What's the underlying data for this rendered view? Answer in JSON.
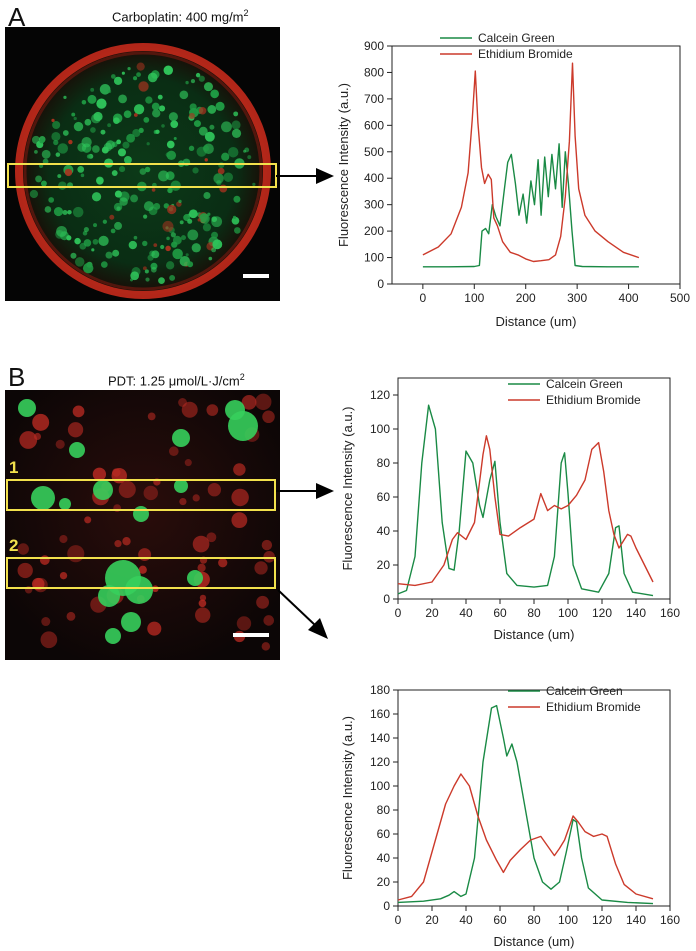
{
  "panels": {
    "a": {
      "letter": "A",
      "caption_text": "Carboplatin: 400 mg/m",
      "caption_sup": "2"
    },
    "b": {
      "letter": "B",
      "caption_text": "PDT: 1.25 μmol/L·J/cm",
      "caption_sup": "2",
      "box1_label": "1",
      "box2_label": "2"
    }
  },
  "colors": {
    "green": "#1a8a45",
    "red": "#cc3a2b",
    "highlight_box": "#f2e14c"
  },
  "chart_data": [
    {
      "id": "A",
      "type": "line",
      "title": "",
      "xlabel": "Distance (um)",
      "ylabel": "Fluorescence Intensity (a.u.)",
      "xlim": [
        -60,
        500
      ],
      "ylim": [
        0,
        900
      ],
      "xticks": [
        0,
        100,
        200,
        300,
        400,
        500
      ],
      "yticks": [
        0,
        100,
        200,
        300,
        400,
        500,
        600,
        700,
        800,
        900
      ],
      "legend_position": "top-center",
      "series": [
        {
          "name": "Calcein Green",
          "color": "#1a8a45",
          "points": [
            [
              0,
              65
            ],
            [
              50,
              65
            ],
            [
              100,
              66
            ],
            [
              110,
              70
            ],
            [
              115,
              200
            ],
            [
              122,
              210
            ],
            [
              128,
              190
            ],
            [
              135,
              300
            ],
            [
              142,
              255
            ],
            [
              150,
              220
            ],
            [
              158,
              350
            ],
            [
              165,
              460
            ],
            [
              172,
              490
            ],
            [
              180,
              380
            ],
            [
              187,
              260
            ],
            [
              195,
              340
            ],
            [
              202,
              230
            ],
            [
              210,
              390
            ],
            [
              217,
              300
            ],
            [
              224,
              470
            ],
            [
              230,
              260
            ],
            [
              237,
              480
            ],
            [
              244,
              330
            ],
            [
              251,
              490
            ],
            [
              258,
              360
            ],
            [
              265,
              530
            ],
            [
              271,
              290
            ],
            [
              277,
              500
            ],
            [
              283,
              380
            ],
            [
              290,
              200
            ],
            [
              296,
              70
            ],
            [
              310,
              66
            ],
            [
              360,
              65
            ],
            [
              420,
              65
            ]
          ]
        },
        {
          "name": "Ethidium Bromide",
          "color": "#cc3a2b",
          "points": [
            [
              0,
              110
            ],
            [
              30,
              140
            ],
            [
              55,
              190
            ],
            [
              75,
              290
            ],
            [
              88,
              420
            ],
            [
              96,
              620
            ],
            [
              102,
              805
            ],
            [
              107,
              610
            ],
            [
              114,
              440
            ],
            [
              120,
              380
            ],
            [
              127,
              415
            ],
            [
              133,
              395
            ],
            [
              138,
              250
            ],
            [
              145,
              220
            ],
            [
              155,
              160
            ],
            [
              170,
              120
            ],
            [
              185,
              110
            ],
            [
              200,
              95
            ],
            [
              215,
              85
            ],
            [
              230,
              88
            ],
            [
              245,
              92
            ],
            [
              258,
              110
            ],
            [
              268,
              180
            ],
            [
              277,
              330
            ],
            [
              285,
              540
            ],
            [
              291,
              835
            ],
            [
              296,
              560
            ],
            [
              303,
              360
            ],
            [
              315,
              260
            ],
            [
              335,
              200
            ],
            [
              360,
              160
            ],
            [
              390,
              120
            ],
            [
              420,
              100
            ]
          ]
        }
      ]
    },
    {
      "id": "B1",
      "type": "line",
      "title": "",
      "xlabel": "Distance (um)",
      "ylabel": "Fluorescence Intensity (a.u.)",
      "xlim": [
        0,
        160
      ],
      "ylim": [
        0,
        130
      ],
      "xticks": [
        0,
        20,
        40,
        60,
        80,
        100,
        120,
        140,
        160
      ],
      "yticks": [
        0,
        20,
        40,
        60,
        80,
        100,
        120
      ],
      "legend_position": "top-right",
      "series": [
        {
          "name": "Calcein Green",
          "color": "#1a8a45",
          "points": [
            [
              0,
              3
            ],
            [
              5,
              5
            ],
            [
              10,
              25
            ],
            [
              14,
              80
            ],
            [
              18,
              114
            ],
            [
              22,
              100
            ],
            [
              26,
              45
            ],
            [
              30,
              18
            ],
            [
              33,
              17
            ],
            [
              36,
              40
            ],
            [
              40,
              87
            ],
            [
              44,
              80
            ],
            [
              48,
              55
            ],
            [
              50,
              48
            ],
            [
              54,
              70
            ],
            [
              57,
              81
            ],
            [
              60,
              45
            ],
            [
              64,
              15
            ],
            [
              70,
              8
            ],
            [
              80,
              7
            ],
            [
              88,
              8
            ],
            [
              92,
              25
            ],
            [
              96,
              80
            ],
            [
              98,
              86
            ],
            [
              100,
              62
            ],
            [
              103,
              20
            ],
            [
              108,
              6
            ],
            [
              118,
              4
            ],
            [
              124,
              15
            ],
            [
              128,
              42
            ],
            [
              130,
              43
            ],
            [
              133,
              15
            ],
            [
              138,
              4
            ],
            [
              150,
              2
            ]
          ]
        },
        {
          "name": "Ethidium Bromide",
          "color": "#cc3a2b",
          "points": [
            [
              0,
              9
            ],
            [
              10,
              8
            ],
            [
              20,
              10
            ],
            [
              27,
              20
            ],
            [
              32,
              35
            ],
            [
              35,
              39
            ],
            [
              40,
              35
            ],
            [
              45,
              45
            ],
            [
              50,
              85
            ],
            [
              52,
              96
            ],
            [
              54,
              88
            ],
            [
              57,
              60
            ],
            [
              60,
              38
            ],
            [
              65,
              37
            ],
            [
              72,
              42
            ],
            [
              80,
              47
            ],
            [
              84,
              62
            ],
            [
              88,
              52
            ],
            [
              92,
              55
            ],
            [
              96,
              53
            ],
            [
              100,
              55
            ],
            [
              105,
              61
            ],
            [
              110,
              70
            ],
            [
              114,
              88
            ],
            [
              118,
              92
            ],
            [
              121,
              75
            ],
            [
              124,
              52
            ],
            [
              127,
              38
            ],
            [
              130,
              30
            ],
            [
              135,
              38
            ],
            [
              137,
              37
            ],
            [
              140,
              30
            ],
            [
              145,
              20
            ],
            [
              150,
              10
            ]
          ]
        }
      ]
    },
    {
      "id": "B2",
      "type": "line",
      "title": "",
      "xlabel": "Distance (um)",
      "ylabel": "Fluorescence Intensity (a.u.)",
      "xlim": [
        0,
        160
      ],
      "ylim": [
        0,
        180
      ],
      "xticks": [
        0,
        20,
        40,
        60,
        80,
        100,
        120,
        140,
        160
      ],
      "yticks": [
        0,
        20,
        40,
        60,
        80,
        100,
        120,
        140,
        160,
        180
      ],
      "legend_position": "top-right",
      "series": [
        {
          "name": "Calcein Green",
          "color": "#1a8a45",
          "points": [
            [
              0,
              3
            ],
            [
              15,
              4
            ],
            [
              25,
              6
            ],
            [
              30,
              9
            ],
            [
              33,
              12
            ],
            [
              37,
              8
            ],
            [
              40,
              10
            ],
            [
              45,
              40
            ],
            [
              50,
              120
            ],
            [
              55,
              165
            ],
            [
              58,
              167
            ],
            [
              62,
              140
            ],
            [
              64,
              125
            ],
            [
              67,
              135
            ],
            [
              70,
              120
            ],
            [
              75,
              80
            ],
            [
              80,
              40
            ],
            [
              85,
              20
            ],
            [
              90,
              14
            ],
            [
              95,
              20
            ],
            [
              99,
              45
            ],
            [
              103,
              72
            ],
            [
              105,
              70
            ],
            [
              108,
              40
            ],
            [
              112,
              15
            ],
            [
              120,
              5
            ],
            [
              135,
              3
            ],
            [
              150,
              2
            ]
          ]
        },
        {
          "name": "Ethidium Bromide",
          "color": "#cc3a2b",
          "points": [
            [
              0,
              5
            ],
            [
              8,
              8
            ],
            [
              15,
              20
            ],
            [
              22,
              55
            ],
            [
              28,
              85
            ],
            [
              33,
              100
            ],
            [
              37,
              110
            ],
            [
              42,
              100
            ],
            [
              47,
              75
            ],
            [
              52,
              55
            ],
            [
              58,
              38
            ],
            [
              62,
              28
            ],
            [
              66,
              38
            ],
            [
              72,
              47
            ],
            [
              78,
              55
            ],
            [
              84,
              58
            ],
            [
              88,
              50
            ],
            [
              92,
              42
            ],
            [
              95,
              48
            ],
            [
              98,
              55
            ],
            [
              103,
              75
            ],
            [
              106,
              70
            ],
            [
              110,
              62
            ],
            [
              115,
              58
            ],
            [
              120,
              60
            ],
            [
              123,
              58
            ],
            [
              128,
              35
            ],
            [
              133,
              18
            ],
            [
              140,
              10
            ],
            [
              150,
              6
            ]
          ]
        }
      ]
    }
  ]
}
